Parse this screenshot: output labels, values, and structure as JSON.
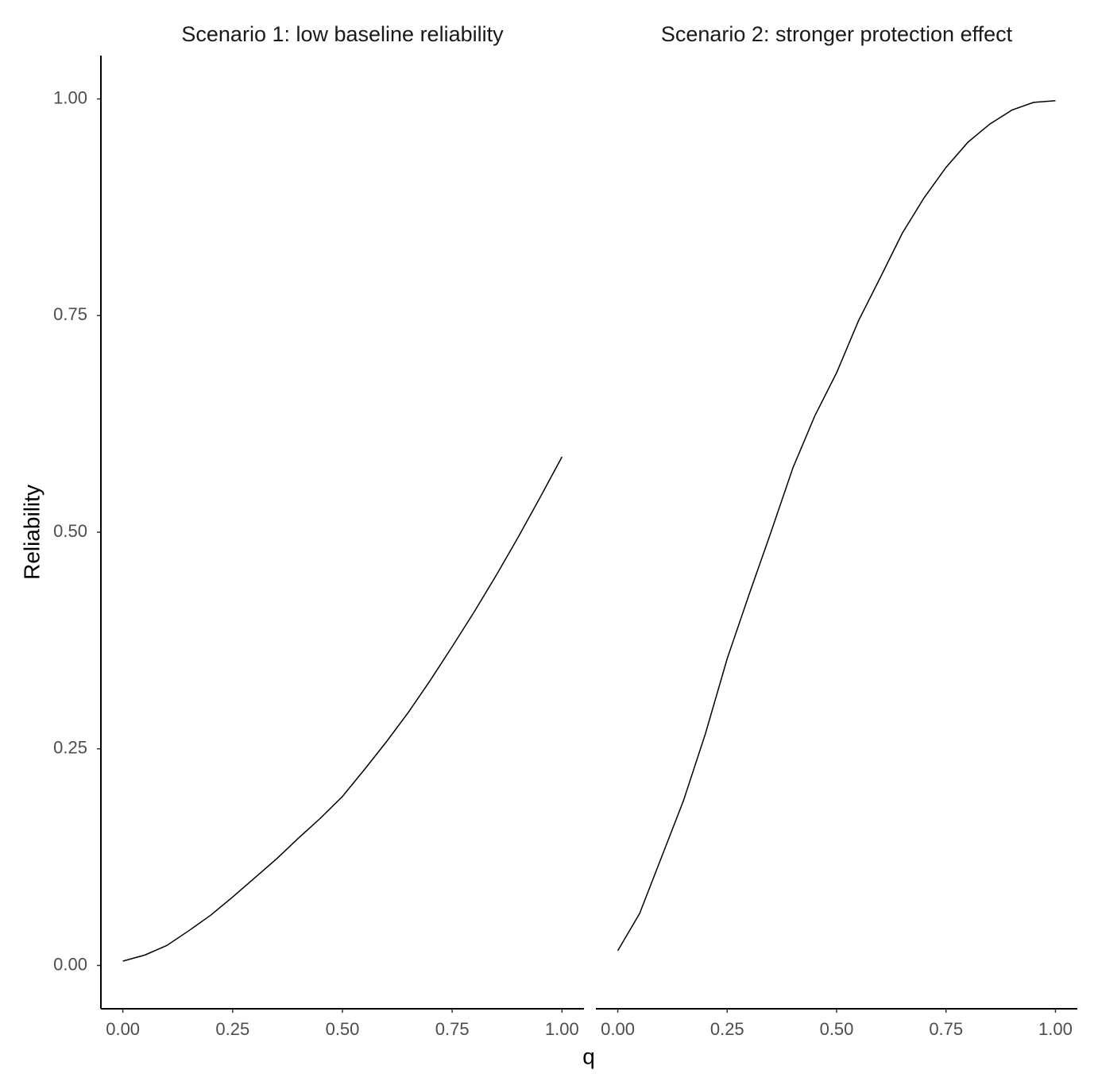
{
  "chart_data": {
    "type": "line",
    "xlabel": "q",
    "ylabel": "Reliability",
    "ylim": [
      -0.05,
      1.05
    ],
    "yticks": [
      {
        "value": 0,
        "label": "0.00"
      },
      {
        "value": 0.25,
        "label": "0.25"
      },
      {
        "value": 0.5,
        "label": "0.50"
      },
      {
        "value": 0.75,
        "label": "0.75"
      },
      {
        "value": 1,
        "label": "1.00"
      }
    ],
    "color": "#000000",
    "facets": [
      {
        "title": "Scenario 1: low baseline reliability",
        "xlim": [
          -0.05,
          1.05
        ],
        "xticks": [
          {
            "value": 0,
            "label": "0.00"
          },
          {
            "value": 0.25,
            "label": "0.25"
          },
          {
            "value": 0.5,
            "label": "0.50"
          },
          {
            "value": 0.75,
            "label": "0.75"
          },
          {
            "value": 1,
            "label": "1.00"
          }
        ],
        "x": [
          0,
          0.05,
          0.1,
          0.15,
          0.2,
          0.25,
          0.3,
          0.35,
          0.4,
          0.45,
          0.5,
          0.55,
          0.6,
          0.65,
          0.7,
          0.75,
          0.8,
          0.85,
          0.9,
          0.95,
          1
        ],
        "values": [
          0.005,
          0.012,
          0.023,
          0.04,
          0.058,
          0.079,
          0.101,
          0.123,
          0.147,
          0.17,
          0.195,
          0.226,
          0.258,
          0.292,
          0.329,
          0.368,
          0.408,
          0.45,
          0.494,
          0.54,
          0.587
        ]
      },
      {
        "title": "Scenario 2: stronger protection effect",
        "xlim": [
          -0.05,
          1.05
        ],
        "xticks": [
          {
            "value": 0,
            "label": "0.00"
          },
          {
            "value": 0.25,
            "label": "0.25"
          },
          {
            "value": 0.5,
            "label": "0.50"
          },
          {
            "value": 0.75,
            "label": "0.75"
          },
          {
            "value": 1,
            "label": "1.00"
          }
        ],
        "x": [
          0,
          0.05,
          0.1,
          0.15,
          0.2,
          0.25,
          0.3,
          0.35,
          0.4,
          0.45,
          0.5,
          0.55,
          0.6,
          0.65,
          0.7,
          0.75,
          0.8,
          0.85,
          0.9,
          0.95,
          1
        ],
        "values": [
          0.017,
          0.06,
          0.125,
          0.19,
          0.267,
          0.354,
          0.428,
          0.5,
          0.574,
          0.634,
          0.684,
          0.744,
          0.794,
          0.845,
          0.886,
          0.921,
          0.95,
          0.971,
          0.987,
          0.996,
          0.998
        ]
      }
    ]
  }
}
